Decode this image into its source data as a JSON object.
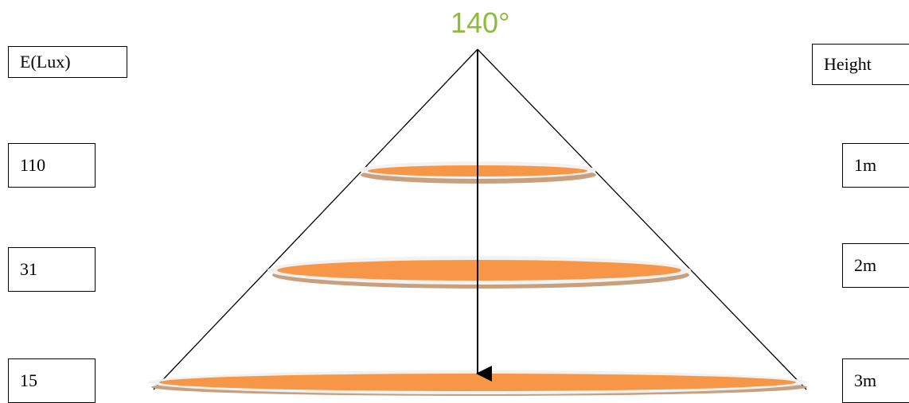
{
  "beam_angle": "140°",
  "left_header": "E(Lux)",
  "right_header": "Height",
  "rows": [
    {
      "lux": "110",
      "height": "1m"
    },
    {
      "lux": "31",
      "height": "2m"
    },
    {
      "lux": "15",
      "height": "3m"
    }
  ],
  "colors": {
    "angle_label": "#8dbb3c",
    "disc_fill": "#f79646",
    "disc_shadow": "#c9a07e",
    "disc_rim": "#f2f2f2"
  }
}
